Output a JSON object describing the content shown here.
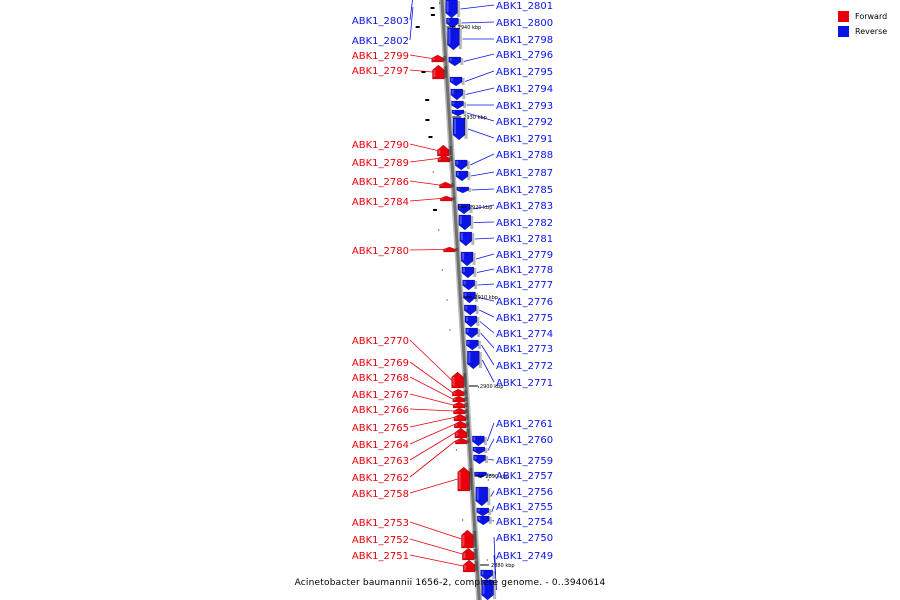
{
  "caption": "Acinetobacter baumannii 1656-2, complete genome. - 0..3940614",
  "legend": [
    {
      "label": "Forward",
      "color": "#e8000b"
    },
    {
      "label": "Reverse",
      "color": "#0a14e6"
    }
  ],
  "ticks": [
    "2940 kbp",
    "2930 kbp",
    "2920 kbp",
    "2910 kbp",
    "2900 kbp",
    "2890 kbp",
    "2880 kbp"
  ],
  "forward_genes": [
    "ABK1_2803",
    "ABK1_2802",
    "ABK1_2799",
    "ABK1_2797",
    "ABK1_2790",
    "ABK1_2789",
    "ABK1_2786",
    "ABK1_2784",
    "ABK1_2780",
    "ABK1_2770",
    "ABK1_2769",
    "ABK1_2768",
    "ABK1_2767",
    "ABK1_2766",
    "ABK1_2765",
    "ABK1_2764",
    "ABK1_2763",
    "ABK1_2762",
    "ABK1_2758",
    "ABK1_2753",
    "ABK1_2752",
    "ABK1_2751"
  ],
  "reverse_genes": [
    "ABK1_2801",
    "ABK1_2800",
    "ABK1_2798",
    "ABK1_2796",
    "ABK1_2795",
    "ABK1_2794",
    "ABK1_2793",
    "ABK1_2792",
    "ABK1_2791",
    "ABK1_2788",
    "ABK1_2787",
    "ABK1_2785",
    "ABK1_2783",
    "ABK1_2782",
    "ABK1_2781",
    "ABK1_2779",
    "ABK1_2778",
    "ABK1_2777",
    "ABK1_2776",
    "ABK1_2775",
    "ABK1_2774",
    "ABK1_2773",
    "ABK1_2772",
    "ABK1_2771",
    "ABK1_2761",
    "ABK1_2760",
    "ABK1_2759",
    "ABK1_2757",
    "ABK1_2756",
    "ABK1_2755",
    "ABK1_2754",
    "ABK1_2750",
    "ABK1_2749"
  ]
}
